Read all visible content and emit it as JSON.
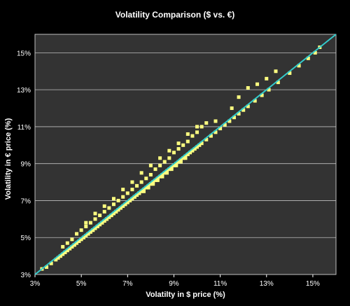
{
  "chart_data": {
    "type": "scatter",
    "title": "Volatility Comparison ($ vs. €)",
    "xlabel": "Volatilty in $ price (%)",
    "ylabel": "Volatility in € price (%)",
    "xlim": [
      3,
      16
    ],
    "ylim": [
      3,
      16
    ],
    "x_ticks": [
      "3%",
      "5%",
      "7%",
      "9%",
      "11%",
      "13%",
      "15%"
    ],
    "y_ticks": [
      "3%",
      "5%",
      "7%",
      "9%",
      "11%",
      "13%",
      "15%"
    ],
    "grid": "horizontal",
    "reference_line": {
      "x": [
        3,
        16
      ],
      "y": [
        3,
        16
      ]
    },
    "series": [
      {
        "x": [
          3.3,
          3.5,
          3.7,
          3.9,
          4.0,
          4.1,
          4.2,
          4.3,
          4.4,
          4.5,
          4.6,
          4.7,
          4.8,
          4.9,
          5.0,
          5.1,
          5.2,
          5.3,
          5.4,
          5.5,
          5.6,
          5.7,
          5.8,
          5.9,
          6.0,
          6.1,
          6.2,
          6.3,
          6.4,
          6.5,
          6.6,
          6.7,
          6.8,
          6.9,
          7.0,
          7.1,
          7.2,
          7.3,
          7.4,
          7.5,
          7.6,
          7.7,
          7.8,
          7.9,
          8.0,
          8.1,
          8.2,
          8.3,
          8.4,
          8.5,
          8.6,
          8.7,
          8.8,
          8.9,
          9.0,
          9.1,
          9.2,
          9.3,
          9.4,
          9.5,
          9.6,
          9.7,
          9.8,
          9.9,
          10.0,
          10.1,
          10.2,
          10.4,
          10.6,
          10.8,
          11.0,
          11.2,
          11.4,
          11.6,
          11.8,
          12.0,
          12.2,
          12.5,
          12.8,
          13.1,
          13.5,
          14.0,
          14.4,
          14.8,
          15.1,
          15.3,
          4.2,
          4.4,
          4.6,
          4.8,
          5.0,
          5.2,
          5.4,
          5.6,
          5.8,
          6.0,
          6.2,
          6.4,
          6.6,
          6.8,
          7.0,
          7.2,
          7.4,
          7.6,
          7.8,
          8.0,
          8.2,
          8.4,
          8.6,
          8.8,
          9.0,
          9.2,
          9.4,
          9.6,
          9.8,
          10.0,
          10.2,
          4.1,
          4.3,
          4.5,
          4.7,
          4.9,
          5.1,
          5.3,
          5.5,
          5.7,
          5.9,
          6.1,
          6.3,
          6.5,
          6.7,
          6.9,
          7.1,
          7.3,
          7.5,
          7.7,
          7.9,
          8.1,
          8.3,
          8.5,
          8.7,
          8.9,
          9.1,
          9.3,
          9.5,
          5.2,
          5.6,
          6.0,
          6.4,
          6.8,
          7.2,
          7.6,
          8.0,
          8.4,
          8.8,
          9.2,
          9.6,
          10.0,
          10.4,
          10.8,
          11.5,
          11.8,
          12.2,
          12.6,
          13.0,
          13.4
        ],
        "y": [
          3.3,
          3.4,
          3.6,
          3.8,
          3.9,
          4.0,
          4.1,
          4.2,
          4.3,
          4.4,
          4.5,
          4.6,
          4.7,
          4.8,
          4.9,
          5.0,
          5.1,
          5.2,
          5.3,
          5.4,
          5.5,
          5.6,
          5.7,
          5.8,
          5.9,
          6.0,
          6.1,
          6.2,
          6.3,
          6.4,
          6.5,
          6.6,
          6.7,
          6.8,
          6.9,
          7.0,
          7.1,
          7.2,
          7.3,
          7.4,
          7.5,
          7.6,
          7.7,
          7.8,
          7.9,
          8.0,
          8.1,
          8.2,
          8.3,
          8.4,
          8.5,
          8.6,
          8.7,
          8.8,
          8.9,
          9.0,
          9.1,
          9.2,
          9.3,
          9.4,
          9.5,
          9.6,
          9.7,
          9.8,
          9.9,
          10.0,
          10.1,
          10.3,
          10.5,
          10.7,
          10.9,
          11.1,
          11.3,
          11.5,
          11.7,
          11.9,
          12.1,
          12.4,
          12.7,
          13.0,
          13.4,
          13.9,
          14.3,
          14.7,
          15.0,
          15.3,
          4.5,
          4.7,
          4.9,
          5.2,
          5.4,
          5.6,
          5.8,
          6.0,
          6.2,
          6.4,
          6.6,
          6.8,
          7.0,
          7.2,
          7.4,
          7.6,
          7.8,
          8.0,
          8.2,
          8.4,
          8.7,
          8.9,
          9.1,
          9.3,
          9.6,
          9.8,
          10.0,
          10.2,
          10.5,
          10.7,
          11.0,
          4.0,
          4.2,
          4.4,
          4.6,
          4.8,
          5.0,
          5.2,
          5.4,
          5.6,
          5.8,
          6.0,
          6.2,
          6.4,
          6.6,
          6.8,
          7.0,
          7.2,
          7.4,
          7.5,
          7.7,
          7.9,
          8.1,
          8.3,
          8.5,
          8.7,
          8.9,
          9.1,
          9.3,
          5.8,
          6.3,
          6.7,
          7.1,
          7.6,
          8.0,
          8.5,
          8.9,
          9.3,
          9.7,
          10.1,
          10.6,
          11.0,
          11.2,
          11.3,
          12.0,
          12.6,
          13.1,
          13.3,
          13.6,
          14.0
        ]
      }
    ],
    "colors": {
      "points": "#ffff80",
      "line": "#33cccc",
      "plot_bg": "#333333",
      "grid": "#bfbfbf"
    }
  }
}
